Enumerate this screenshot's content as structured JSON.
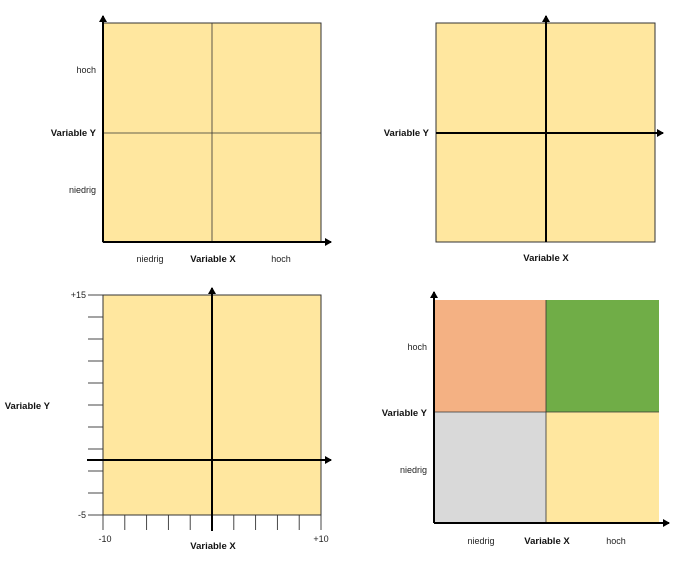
{
  "colors": {
    "yellow": "#FFE79F",
    "orange": "#F4B183",
    "green": "#70AD47",
    "grey": "#D9D9D9",
    "axis": "#000000",
    "line": "#333333"
  },
  "panel1": {
    "y_high": "hoch",
    "y_label": "Variable Y",
    "y_low": "niedrig",
    "x_low": "niedrig",
    "x_label": "Variable X",
    "x_high": "hoch"
  },
  "panel2": {
    "y_label": "Variable Y",
    "x_label": "Variable X"
  },
  "panel3": {
    "y_max": "+15",
    "y_min": "-5",
    "y_label": "Variable Y",
    "x_min": "-10",
    "x_max": "+10",
    "x_label": "Variable X",
    "y_range": [
      -5,
      15
    ],
    "x_range": [
      -10,
      10
    ]
  },
  "panel4": {
    "y_high": "hoch",
    "y_label": "Variable Y",
    "y_low": "niedrig",
    "x_low": "niedrig",
    "x_label": "Variable X",
    "x_high": "hoch",
    "quadrants": {
      "top_left": "orange",
      "top_right": "green",
      "bottom_left": "grey",
      "bottom_right": "yellow"
    }
  }
}
